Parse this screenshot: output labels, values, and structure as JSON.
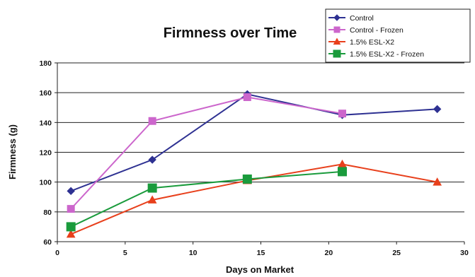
{
  "chart_data": {
    "type": "line",
    "title": "Firmness over Time",
    "xlabel": "Days on Market",
    "ylabel": "Firmness (g)",
    "xlim": [
      0,
      30
    ],
    "ylim": [
      60,
      180
    ],
    "x_ticks": [
      0,
      5,
      10,
      15,
      20,
      25,
      30
    ],
    "y_ticks": [
      60,
      80,
      100,
      120,
      140,
      160,
      180
    ],
    "grid": "horizontal",
    "legend_position": "top-right",
    "series": [
      {
        "name": "Control",
        "color": "#2e3192",
        "marker": "diamond",
        "points": [
          [
            1,
            94
          ],
          [
            7,
            115
          ],
          [
            14,
            159
          ],
          [
            21,
            145
          ],
          [
            28,
            149
          ]
        ]
      },
      {
        "name": "Control - Frozen",
        "color": "#cc66cc",
        "marker": "square",
        "points": [
          [
            1,
            82
          ],
          [
            7,
            141
          ],
          [
            14,
            157
          ],
          [
            21,
            146
          ]
        ]
      },
      {
        "name": "1.5% ESL-X2",
        "color": "#e8401c",
        "marker": "triangle",
        "points": [
          [
            1,
            65
          ],
          [
            7,
            88
          ],
          [
            14,
            101
          ],
          [
            21,
            112
          ],
          [
            28,
            100
          ]
        ]
      },
      {
        "name": "1.5% ESL-X2 - Frozen",
        "color": "#1a9b3c",
        "marker": "square",
        "points": [
          [
            1,
            70
          ],
          [
            7,
            96
          ],
          [
            14,
            102
          ],
          [
            21,
            107
          ]
        ]
      }
    ]
  }
}
